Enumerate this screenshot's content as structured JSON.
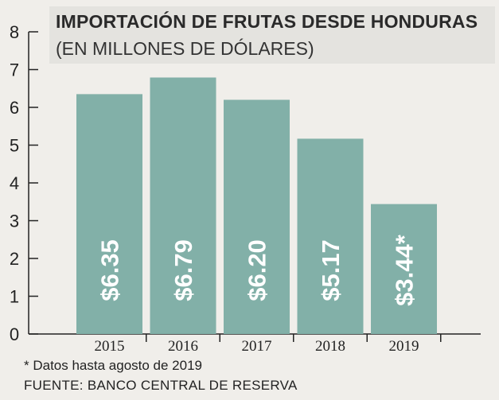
{
  "chart_data": {
    "type": "bar",
    "title": "IMPORTACIÓN DE FRUTAS DESDE HONDURAS",
    "subtitle": "(EN MILLONES DE DÓLARES)",
    "categories": [
      "2015",
      "2016",
      "2017",
      "2018",
      "2019"
    ],
    "values": [
      6.35,
      6.79,
      6.2,
      5.17,
      3.44
    ],
    "data_labels": [
      "$6.35",
      "$6.79",
      "$6.20",
      "$5.17",
      "$3.44*"
    ],
    "ylim": [
      0,
      8
    ],
    "yticks": [
      "0",
      "1",
      "2",
      "3",
      "4",
      "5",
      "6",
      "7",
      "8"
    ],
    "grid": false,
    "legend": "none",
    "bar_color": "#82b0a8",
    "note": "* Datos hasta agosto de 2019",
    "source": "FUENTE: BANCO CENTRAL DE RESERVA"
  }
}
